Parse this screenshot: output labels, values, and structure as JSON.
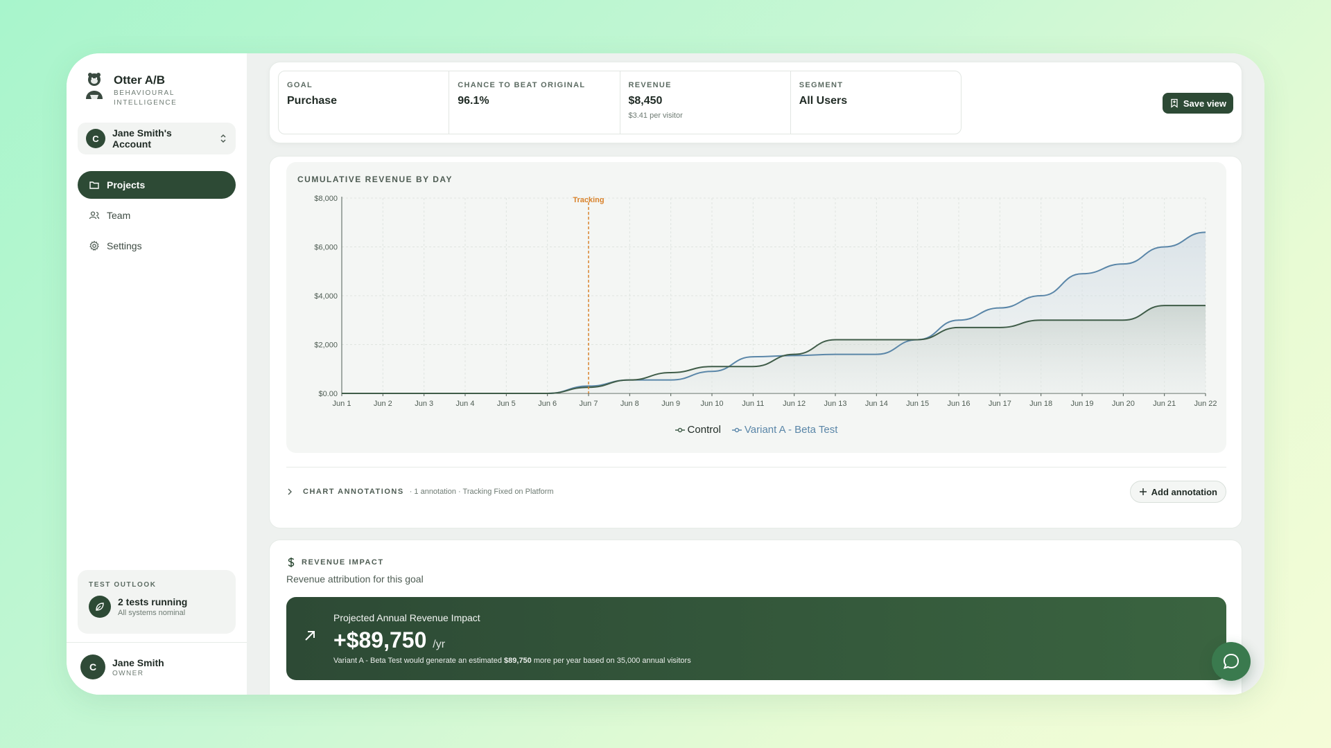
{
  "brand": {
    "name": "Otter A/B",
    "tagline_1": "BEHAVIOURAL",
    "tagline_2": "INTELLIGENCE"
  },
  "account": {
    "initial": "C",
    "name": "Jane Smith's Account"
  },
  "nav": [
    {
      "label": "Projects",
      "icon": "folder-icon",
      "active": true
    },
    {
      "label": "Team",
      "icon": "users-icon",
      "active": false
    },
    {
      "label": "Settings",
      "icon": "gear-icon",
      "active": false
    }
  ],
  "outlook": {
    "title": "TEST OUTLOOK",
    "main": "2 tests running",
    "sub": "All systems nominal"
  },
  "user": {
    "initial": "C",
    "name": "Jane Smith",
    "role": "OWNER"
  },
  "metrics": [
    {
      "label": "GOAL",
      "value": "Purchase",
      "sub": ""
    },
    {
      "label": "CHANCE TO BEAT ORIGINAL",
      "value": "96.1%",
      "sub": ""
    },
    {
      "label": "REVENUE",
      "value": "$8,450",
      "sub": "$3.41 per visitor"
    },
    {
      "label": "SEGMENT",
      "value": "All Users",
      "sub": ""
    }
  ],
  "toolbar": {
    "save_label": "Save view"
  },
  "chart_data": {
    "type": "area",
    "title": "CUMULATIVE REVENUE BY DAY",
    "categories": [
      "Jun 1",
      "Jun 2",
      "Jun 3",
      "Jun 4",
      "Jun 5",
      "Jun 6",
      "Jun 7",
      "Jun 8",
      "Jun 9",
      "Jun 10",
      "Jun 11",
      "Jun 12",
      "Jun 13",
      "Jun 14",
      "Jun 15",
      "Jun 16",
      "Jun 17",
      "Jun 18",
      "Jun 19",
      "Jun 20",
      "Jun 21",
      "Jun 22"
    ],
    "y_ticks": [
      "$0.00",
      "$2,000",
      "$4,000",
      "$6,000",
      "$8,000"
    ],
    "ylim": [
      0,
      8000
    ],
    "series": [
      {
        "name": "Control",
        "color": "#3f5c48",
        "values": [
          0,
          0,
          0,
          0,
          0,
          0,
          250,
          550,
          850,
          1100,
          1100,
          1600,
          2200,
          2200,
          2200,
          2700,
          2700,
          3000,
          3000,
          3000,
          3600,
          3600
        ]
      },
      {
        "name": "Variant A - Beta Test",
        "color": "#5a86a8",
        "values": [
          0,
          0,
          0,
          0,
          0,
          0,
          300,
          550,
          550,
          900,
          1500,
          1550,
          1600,
          1600,
          2200,
          3000,
          3500,
          4000,
          4900,
          5300,
          6000,
          6600
        ]
      }
    ],
    "annotation": {
      "label": "Tracking",
      "x": "Jun 7",
      "color": "#d9822b"
    },
    "grid": true,
    "legend": "bottom"
  },
  "annotations": {
    "title": "CHART ANNOTATIONS",
    "summary": "· 1 annotation · Tracking Fixed on Platform",
    "add_label": "Add annotation"
  },
  "revenue": {
    "title": "REVENUE IMPACT",
    "subtitle": "Revenue attribution for this goal",
    "banner_label": "Projected Annual Revenue Impact",
    "value": "+$89,750",
    "unit": "/yr",
    "desc_pre": "Variant A - Beta Test would generate an estimated ",
    "desc_amount": "$89,750",
    "desc_post": " more per year based on 35,000 annual visitors"
  }
}
